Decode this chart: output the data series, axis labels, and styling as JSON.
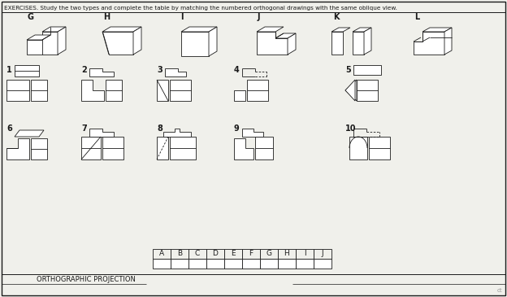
{
  "title": "EXERCISES. Study the two types and complete the table by matching the numbered orthogonal drawings with the same oblique view.",
  "bg_color": "#f0f0eb",
  "line_color": "#1a1a1a",
  "table_letters": [
    "A",
    "B",
    "C",
    "D",
    "E",
    "F",
    "G",
    "H",
    "I",
    "J"
  ],
  "footer_text": "ORTHOGRAPHIC PROJECTION"
}
